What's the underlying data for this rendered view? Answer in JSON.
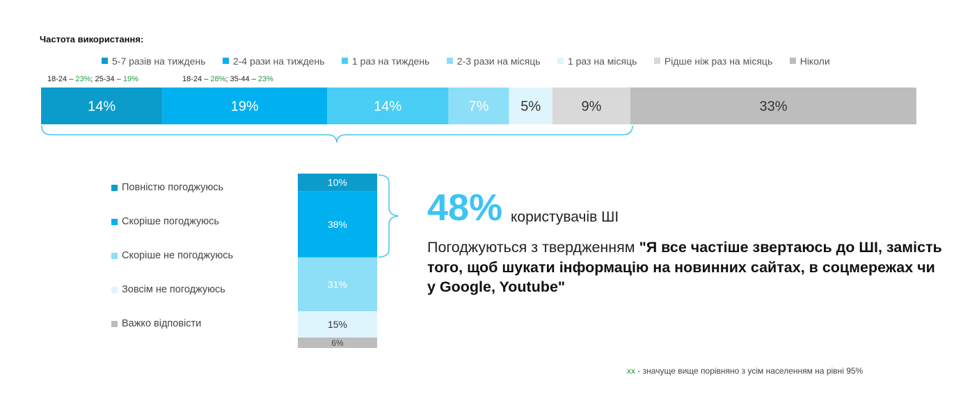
{
  "header": {
    "title": "Частота використання:"
  },
  "top_notes": [
    {
      "prefix": "18-24 – ",
      "value1": "23%",
      "mid": "; 25-34 – ",
      "value2": "19%"
    },
    {
      "prefix": "18-24 – ",
      "value1": "28%",
      "mid": "; 35-44 – ",
      "value2": "23%"
    }
  ],
  "agreement_legend": [
    "Повністю погоджуюсь",
    "Скоріше погоджуюсь",
    "Скоріше не погоджуюсь",
    "Зовсім не погоджуюсь",
    "Важко відповісти"
  ],
  "callout": {
    "big_value": "48%",
    "big_label": "користувачів ШІ",
    "statement_lead": "Погоджуються з твердженням ",
    "statement_quote": "\"Я все частіше звертаюсь до ШІ, замість того, щоб шукати інформацію на новинних сайтах, в соцмережах чи у Google, Youtube\""
  },
  "footnote": {
    "marker": "xx",
    "text": " - значуще вище порівняно з усім населенням на рівні 95%"
  },
  "colors": {
    "c1": "#0c9ccc",
    "c2": "#00b0ef",
    "c3": "#49cdf5",
    "c4": "#8ddff8",
    "c5": "#dff5fd",
    "c6": "#d9d9d9",
    "c7": "#bdbdbd",
    "brace": "#49c2ec",
    "highlight_green": "#1e9b3c"
  },
  "chart_data": [
    {
      "type": "bar",
      "orientation": "horizontal-stacked",
      "title": "Частота використання:",
      "series": [
        {
          "name": "5-7 разів на тиждень",
          "values": [
            14
          ],
          "label": "14%",
          "color": "#0c9ccc"
        },
        {
          "name": "2-4 рази на тиждень",
          "values": [
            19
          ],
          "label": "19%",
          "color": "#00b0ef"
        },
        {
          "name": "1 раз на тиждень",
          "values": [
            14
          ],
          "label": "14%",
          "color": "#49cdf5"
        },
        {
          "name": "2-3 рази на місяць",
          "values": [
            7
          ],
          "label": "7%",
          "color": "#8ddff8"
        },
        {
          "name": "1 раз на місяць",
          "values": [
            5
          ],
          "label": "5%",
          "color": "#dff5fd"
        },
        {
          "name": "Рідше ніж раз на місяць",
          "values": [
            9
          ],
          "label": "9%",
          "color": "#d9d9d9"
        },
        {
          "name": "Ніколи",
          "values": [
            33
          ],
          "label": "33%",
          "color": "#bdbdbd"
        }
      ],
      "legend_position": "top"
    },
    {
      "type": "bar",
      "orientation": "vertical-stacked",
      "series": [
        {
          "name": "Повністю погоджуюсь",
          "values": [
            10
          ],
          "label": "10%",
          "color": "#0c9ccc"
        },
        {
          "name": "Скоріше погоджуюсь",
          "values": [
            38
          ],
          "label": "38%",
          "color": "#00b0ef"
        },
        {
          "name": "Скоріше не погоджуюсь",
          "values": [
            31
          ],
          "label": "31%",
          "color": "#8ddff8"
        },
        {
          "name": "Зовсім не погоджуюсь",
          "values": [
            15
          ],
          "label": "15%",
          "color": "#dff5fd"
        },
        {
          "name": "Важко відповісти",
          "values": [
            6
          ],
          "label": "6%",
          "color": "#bdbdbd"
        }
      ],
      "legend_position": "left"
    }
  ]
}
